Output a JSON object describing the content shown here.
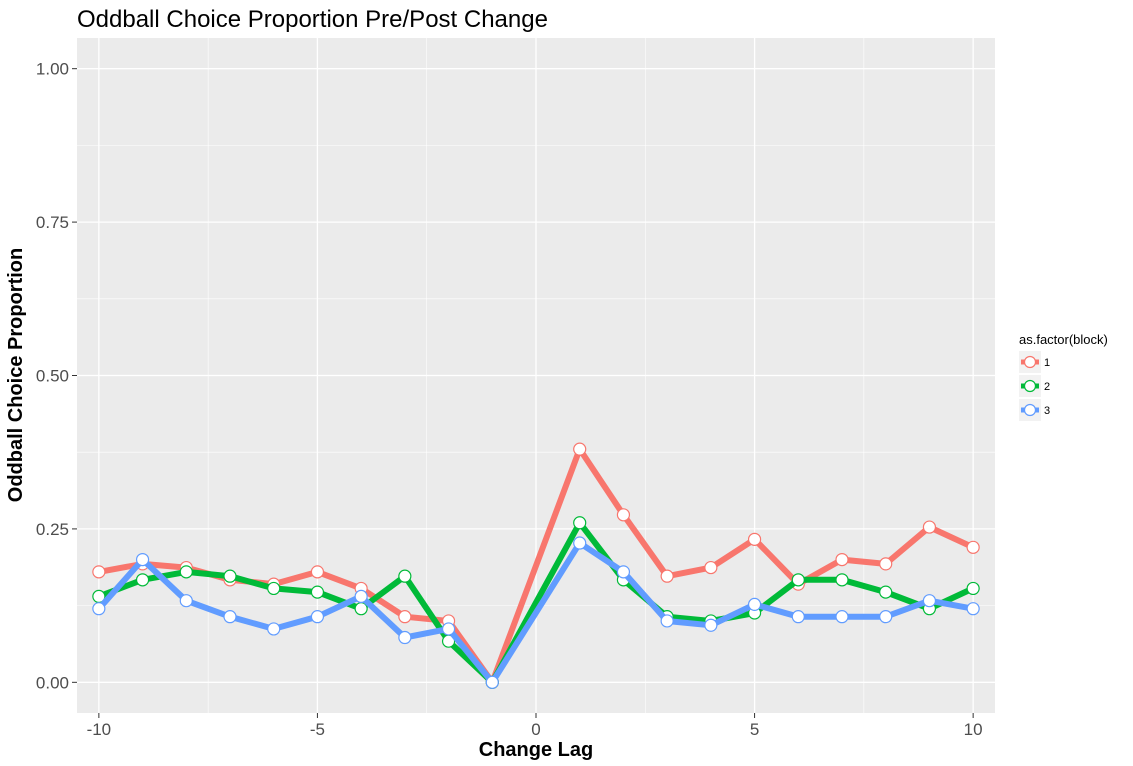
{
  "chart_data": {
    "type": "line",
    "title": "Oddball Choice Proportion Pre/Post Change",
    "xlabel": "Change Lag",
    "ylabel": "Oddball Choice Proportion",
    "xlim": [
      -10.5,
      10.5
    ],
    "ylim": [
      -0.05,
      1.05
    ],
    "x_ticks": [
      -10,
      -5,
      0,
      5,
      10
    ],
    "x_tick_labels": [
      "-10",
      "-5",
      "0",
      "5",
      "10"
    ],
    "y_ticks": [
      0,
      0.25,
      0.5,
      0.75,
      1.0
    ],
    "y_tick_labels": [
      "0.00",
      "0.25",
      "0.50",
      "0.75",
      "1.00"
    ],
    "grid": true,
    "legend": {
      "title": "as.factor(block)",
      "position": "right"
    },
    "x": [
      -10,
      -9,
      -8,
      -7,
      -6,
      -5,
      -4,
      -3,
      -2,
      -1,
      1,
      2,
      3,
      4,
      5,
      6,
      7,
      8,
      9,
      10
    ],
    "series": [
      {
        "name": "1",
        "color": "#F8766D",
        "values": [
          0.18,
          0.193,
          0.187,
          0.167,
          0.16,
          0.18,
          0.153,
          0.107,
          0.1,
          0.0,
          0.38,
          0.273,
          0.173,
          0.187,
          0.233,
          0.16,
          0.2,
          0.193,
          0.253,
          0.22
        ]
      },
      {
        "name": "2",
        "color": "#00BA38",
        "values": [
          0.14,
          0.167,
          0.18,
          0.173,
          0.153,
          0.147,
          0.12,
          0.173,
          0.067,
          0.0,
          0.26,
          0.167,
          0.107,
          0.1,
          0.113,
          0.167,
          0.167,
          0.147,
          0.12,
          0.153
        ]
      },
      {
        "name": "3",
        "color": "#619CFF",
        "values": [
          0.12,
          0.2,
          0.133,
          0.107,
          0.087,
          0.107,
          0.14,
          0.073,
          0.087,
          0.0,
          0.227,
          0.18,
          0.1,
          0.093,
          0.127,
          0.107,
          0.107,
          0.107,
          0.133,
          0.12
        ]
      }
    ]
  }
}
